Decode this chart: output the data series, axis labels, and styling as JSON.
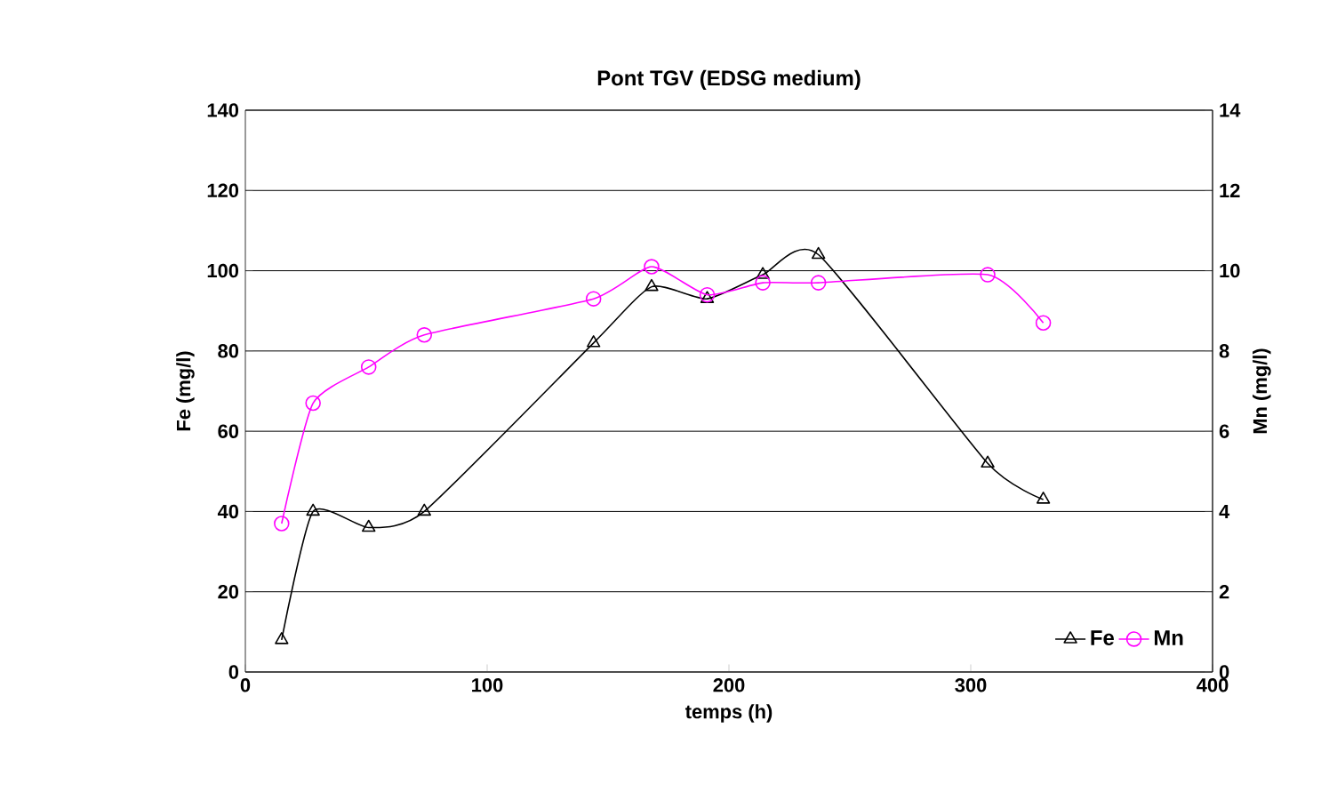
{
  "chart_data": {
    "type": "line",
    "title": "Pont TGV (EDSG medium)",
    "xlabel": "temps (h)",
    "ylabel": "Fe (mg/l)",
    "y2label": "Mn (mg/l)",
    "xlim": [
      0,
      400
    ],
    "xticks": [
      0,
      100,
      200,
      300,
      400
    ],
    "ylim": [
      0,
      140
    ],
    "yticks": [
      0,
      20,
      40,
      60,
      80,
      100,
      120,
      140
    ],
    "y2lim": [
      0,
      14
    ],
    "y2ticks": [
      0,
      2,
      4,
      6,
      8,
      10,
      12,
      14
    ],
    "grid": "y",
    "legend": "bottom right",
    "line_style": "solid",
    "series": [
      {
        "name": "Fe",
        "color": "#000000",
        "marker": "triangle",
        "x": [
          15,
          28,
          51,
          74,
          144,
          168,
          191,
          214,
          237,
          307,
          330
        ],
        "values": [
          8,
          40,
          36,
          40,
          82,
          96,
          93,
          99,
          104,
          52,
          43
        ]
      },
      {
        "name": "Mn",
        "color": "#ff00ff",
        "marker": "circle",
        "axis": "y2",
        "x": [
          15,
          28,
          51,
          74,
          144,
          168,
          191,
          214,
          237,
          307,
          330
        ],
        "values": [
          3.7,
          6.7,
          7.6,
          8.4,
          9.3,
          10.1,
          9.4,
          9.7,
          9.7,
          9.9,
          8.7
        ]
      }
    ]
  }
}
